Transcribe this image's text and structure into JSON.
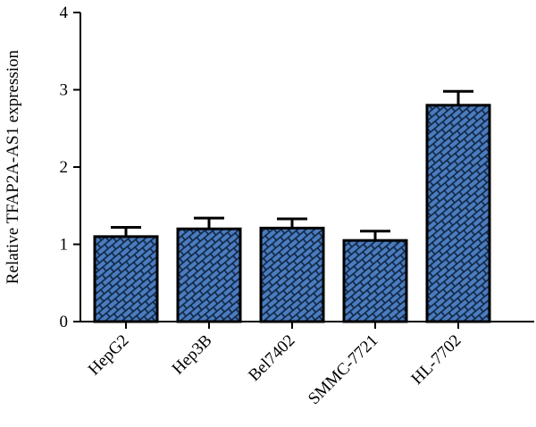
{
  "chart_data": {
    "type": "bar",
    "categories": [
      "HepG2",
      "Hep3B",
      "Bel7402",
      "SMMC-7721",
      "HL-7702"
    ],
    "values": [
      1.1,
      1.2,
      1.21,
      1.05,
      2.8
    ],
    "errors": [
      0.12,
      0.14,
      0.12,
      0.12,
      0.18
    ],
    "ylabel": "Relative TFAP2A-AS1 expression",
    "ylim": [
      0,
      4
    ],
    "yticks": [
      "0",
      "1",
      "2",
      "3",
      "4"
    ],
    "grid": false,
    "legend": "none",
    "colors": {
      "bar_fill": "#4a7cc0",
      "bar_stroke": "#000000",
      "pattern_line": "#10243f",
      "axis": "#000000"
    }
  }
}
